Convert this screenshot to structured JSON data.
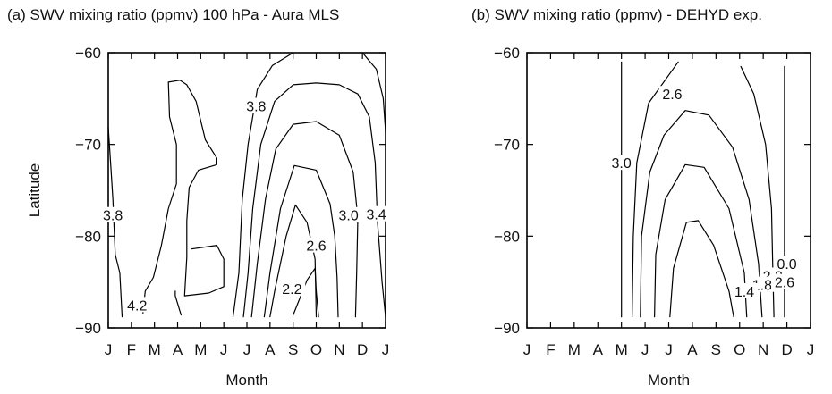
{
  "chart_data": [
    {
      "type": "contour",
      "title": "(a) SWV mixing ratio (ppmv) 100 hPa - Aura MLS",
      "xlabel": "Month",
      "ylabel": "Latitude",
      "x_ticklabels": [
        "J",
        "F",
        "M",
        "A",
        "M",
        "J",
        "J",
        "A",
        "S",
        "O",
        "N",
        "D",
        "J"
      ],
      "y_ticks": [
        -60,
        -70,
        -80,
        -90
      ],
      "y_ticklabels": [
        "−60",
        "−70",
        "−80",
        "−90"
      ],
      "ylim": [
        -90,
        -60
      ],
      "contour_labels": [
        {
          "text": "3.8",
          "x": 0.2,
          "y": -77.7
        },
        {
          "text": "4.2",
          "x": 1.25,
          "y": -87.5
        },
        {
          "text": "3.8",
          "x": 6.4,
          "y": -65.8
        },
        {
          "text": "3.0",
          "x": 10.4,
          "y": -77.7
        },
        {
          "text": "3.4",
          "x": 11.6,
          "y": -77.6
        },
        {
          "text": "2.6",
          "x": 9.0,
          "y": -81.0
        },
        {
          "text": "2.2",
          "x": 7.95,
          "y": -85.7
        }
      ],
      "contours": [
        {
          "level": 4.2,
          "points": [
            [
              0.0,
              -68.1
            ],
            [
              0.1,
              -72
            ],
            [
              0.2,
              -76
            ],
            [
              0.3,
              -82
            ],
            [
              0.5,
              -84
            ],
            [
              0.6,
              -88.8
            ]
          ]
        },
        {
          "level": 4.2,
          "points": [
            [
              1.5,
              -88.4
            ],
            [
              1.6,
              -86
            ],
            [
              1.95,
              -84.5
            ],
            [
              2.3,
              -81
            ],
            [
              2.6,
              -77
            ],
            [
              2.95,
              -74.3
            ],
            [
              2.95,
              -70
            ],
            [
              2.65,
              -67
            ],
            [
              2.6,
              -63.2
            ],
            [
              3.1,
              -63.0
            ],
            [
              3.4,
              -63.5
            ],
            [
              3.8,
              -65.3
            ],
            [
              4.2,
              -69.5
            ],
            [
              4.7,
              -71.5
            ],
            [
              4.7,
              -72.2
            ],
            [
              3.9,
              -72.8
            ],
            [
              3.5,
              -74.7
            ],
            [
              3.4,
              -78.3
            ],
            [
              3.4,
              -82.3
            ],
            [
              3.3,
              -86.5
            ],
            [
              4.35,
              -86.2
            ],
            [
              5.0,
              -85.5
            ],
            [
              5.0,
              -82.5
            ],
            [
              4.7,
              -81.0
            ],
            [
              3.6,
              -81.4
            ]
          ]
        },
        {
          "level": 3.8,
          "points": [
            [
              3.15,
              -88.6
            ],
            [
              2.9,
              -86.5
            ],
            [
              2.9,
              -86
            ]
          ]
        },
        {
          "level": 3.8,
          "points": [
            [
              5.4,
              -88.8
            ],
            [
              5.65,
              -84
            ],
            [
              5.8,
              -76
            ],
            [
              6.05,
              -70
            ],
            [
              6.45,
              -64
            ],
            [
              7.1,
              -61.4
            ],
            [
              8.0,
              -60.0
            ]
          ]
        },
        {
          "level": 3.8,
          "points": [
            [
              11.0,
              -60.0
            ],
            [
              11.6,
              -61.8
            ],
            [
              11.9,
              -65
            ],
            [
              12.0,
              -68.6
            ]
          ]
        },
        {
          "level": 3.4,
          "points": [
            [
              5.85,
              -88.8
            ],
            [
              6.05,
              -84
            ],
            [
              6.25,
              -77
            ],
            [
              6.6,
              -70
            ],
            [
              7.2,
              -65.3
            ],
            [
              8.0,
              -63.5
            ],
            [
              9.0,
              -63.3
            ],
            [
              10.0,
              -63.5
            ],
            [
              10.8,
              -64.5
            ],
            [
              11.3,
              -67
            ],
            [
              11.55,
              -72
            ],
            [
              11.65,
              -78.5
            ],
            [
              11.85,
              -85
            ],
            [
              12.0,
              -88.8
            ]
          ]
        },
        {
          "level": 3.0,
          "points": [
            [
              6.2,
              -88.8
            ],
            [
              6.45,
              -83
            ],
            [
              6.8,
              -76
            ],
            [
              7.25,
              -70.5
            ],
            [
              8.0,
              -67.8
            ],
            [
              9.0,
              -67.5
            ],
            [
              10.0,
              -69
            ],
            [
              10.6,
              -73
            ],
            [
              10.8,
              -78
            ],
            [
              10.75,
              -84
            ],
            [
              10.7,
              -88.8
            ]
          ]
        },
        {
          "level": 2.6,
          "points": [
            [
              6.75,
              -88.8
            ],
            [
              7.0,
              -84
            ],
            [
              7.45,
              -77
            ],
            [
              8.05,
              -72.3
            ],
            [
              9.0,
              -72.8
            ],
            [
              9.6,
              -76.5
            ],
            [
              9.8,
              -80
            ],
            [
              9.9,
              -84.5
            ],
            [
              9.95,
              -88.8
            ]
          ]
        },
        {
          "level": 2.2,
          "points": [
            [
              7.0,
              -88.8
            ],
            [
              7.2,
              -86
            ],
            [
              7.7,
              -80
            ],
            [
              8.1,
              -76.6
            ],
            [
              8.6,
              -78.5
            ],
            [
              8.95,
              -82.5
            ],
            [
              9.0,
              -88.8
            ]
          ]
        },
        {
          "level": 2.2,
          "points": [
            [
              8.0,
              -88.6
            ],
            [
              8.6,
              -84.8
            ],
            [
              8.95,
              -83.5
            ],
            [
              9.0,
              -86
            ],
            [
              9.1,
              -88.8
            ]
          ]
        }
      ]
    },
    {
      "type": "contour",
      "title": "(b) SWV mixing ratio (ppmv) - DEHYD exp.",
      "xlabel": "Month",
      "ylabel": "",
      "x_ticklabels": [
        "J",
        "F",
        "M",
        "A",
        "M",
        "J",
        "J",
        "A",
        "S",
        "O",
        "N",
        "D",
        "J"
      ],
      "y_ticks": [
        -60,
        -70,
        -80,
        -90
      ],
      "y_ticklabels": [
        "−60",
        "−70",
        "−80",
        "−90"
      ],
      "ylim": [
        -90,
        -60
      ],
      "contour_labels": [
        {
          "text": "3.0",
          "x": 4.0,
          "y": -72.0
        },
        {
          "text": "2.6",
          "x": 6.15,
          "y": -64.5
        },
        {
          "text": "2.2",
          "x": 10.4,
          "y": -84.3
        },
        {
          "text": "1.8",
          "x": 9.95,
          "y": -85.3
        },
        {
          "text": "1.4",
          "x": 9.2,
          "y": -86.0
        },
        {
          "text": "2.6",
          "x": 10.9,
          "y": -85.0
        },
        {
          "text": "0.0",
          "x": 11.0,
          "y": -83.0
        }
      ],
      "contours": [
        {
          "level": 3.0,
          "points": [
            [
              4.0,
              -61.0
            ],
            [
              4.0,
              -88.8
            ]
          ]
        },
        {
          "level": 2.6,
          "points": [
            [
              4.45,
              -88.8
            ],
            [
              4.5,
              -80
            ],
            [
              4.65,
              -72
            ],
            [
              5.15,
              -65.5
            ],
            [
              6.4,
              -61.0
            ]
          ]
        },
        {
          "level": 2.2,
          "points": [
            [
              4.8,
              -88.8
            ],
            [
              4.85,
              -80
            ],
            [
              5.2,
              -73
            ],
            [
              5.8,
              -69
            ],
            [
              6.7,
              -66.3
            ],
            [
              7.7,
              -66.8
            ],
            [
              8.7,
              -70.3
            ],
            [
              9.4,
              -76
            ],
            [
              9.8,
              -83
            ],
            [
              9.95,
              -88.8
            ]
          ]
        },
        {
          "level": 1.8,
          "points": [
            [
              5.4,
              -88.8
            ],
            [
              5.45,
              -82
            ],
            [
              5.85,
              -76
            ],
            [
              6.7,
              -72.2
            ],
            [
              7.5,
              -72.5
            ],
            [
              8.55,
              -77
            ],
            [
              9.2,
              -84
            ],
            [
              9.3,
              -88.8
            ]
          ]
        },
        {
          "level": 1.4,
          "points": [
            [
              6.05,
              -88.8
            ],
            [
              6.2,
              -83.5
            ],
            [
              6.75,
              -78.5
            ],
            [
              7.25,
              -78.3
            ],
            [
              7.9,
              -81
            ],
            [
              8.55,
              -86
            ],
            [
              8.75,
              -88.8
            ]
          ]
        },
        {
          "level": 2.6,
          "points": [
            [
              9.05,
              -61.5
            ],
            [
              9.6,
              -64.5
            ],
            [
              10.1,
              -70
            ],
            [
              10.35,
              -77
            ],
            [
              10.4,
              -83
            ],
            [
              10.45,
              -88.8
            ]
          ]
        },
        {
          "level": 0.0,
          "points": [
            [
              10.9,
              -61.5
            ],
            [
              10.9,
              -88.8
            ]
          ]
        }
      ]
    }
  ]
}
